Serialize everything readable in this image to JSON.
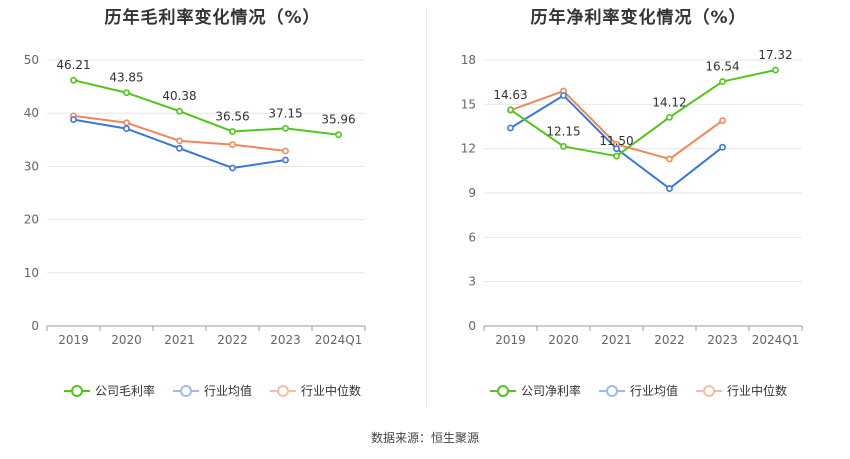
{
  "chart_data": [
    {
      "type": "line",
      "title": "历年毛利率变化情况（%）",
      "categories": [
        "2019",
        "2020",
        "2021",
        "2022",
        "2023",
        "2024Q1"
      ],
      "ylim": [
        0,
        50
      ],
      "yticks": [
        0,
        10,
        20,
        30,
        40,
        50
      ],
      "grid": true,
      "legend_position": "bottom",
      "series": [
        {
          "name": "公司毛利率",
          "color": "#52c41a",
          "values": [
            46.21,
            43.85,
            40.38,
            36.56,
            37.15,
            35.96
          ],
          "labels": [
            "46.21",
            "43.85",
            "40.38",
            "36.56",
            "37.15",
            "35.96"
          ]
        },
        {
          "name": "行业均值",
          "color": "#3a78d8",
          "values": [
            38.8,
            37.1,
            33.4,
            29.7,
            31.2,
            null
          ]
        },
        {
          "name": "行业中位数",
          "color": "#f0875a",
          "values": [
            39.5,
            38.2,
            34.8,
            34.1,
            32.9,
            null
          ]
        }
      ]
    },
    {
      "type": "line",
      "title": "历年净利率变化情况（%）",
      "categories": [
        "2019",
        "2020",
        "2021",
        "2022",
        "2023",
        "2024Q1"
      ],
      "ylim": [
        0,
        18
      ],
      "yticks": [
        0,
        3,
        6,
        9,
        12,
        15,
        18
      ],
      "grid": true,
      "legend_position": "bottom",
      "series": [
        {
          "name": "公司净利率",
          "color": "#52c41a",
          "values": [
            14.63,
            12.15,
            11.5,
            14.12,
            16.54,
            17.32
          ],
          "labels": [
            "14.63",
            "12.15",
            "11.50",
            "14.12",
            "16.54",
            "17.32"
          ]
        },
        {
          "name": "行业均值",
          "color": "#3a78d8",
          "values": [
            13.4,
            15.6,
            12.0,
            9.3,
            12.1,
            null
          ]
        },
        {
          "name": "行业中位数",
          "color": "#f0875a",
          "values": [
            14.6,
            15.9,
            12.3,
            11.3,
            13.9,
            null
          ]
        }
      ]
    }
  ],
  "legend_left": [
    "公司毛利率",
    "行业均值",
    "行业中位数"
  ],
  "legend_right": [
    "公司净利率",
    "行业均值",
    "行业中位数"
  ],
  "colors": {
    "company": "#52c41a",
    "avg": "#3a78d8",
    "median": "#f0875a"
  },
  "source": "数据来源：恒生聚源"
}
